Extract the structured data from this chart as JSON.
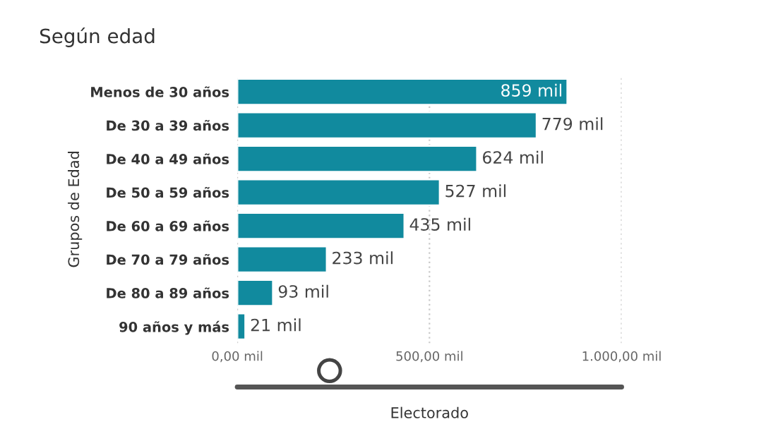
{
  "chart_data": {
    "type": "bar",
    "orientation": "horizontal",
    "title": "Según edad",
    "ylabel": "Grupos de Edad",
    "xlabel": "Electorado",
    "categories": [
      "Menos de 30 años",
      "De 30 a 39 años",
      "De 40 a 49 años",
      "De 50 a 59 años",
      "De 60 a 69 años",
      "De 70 a 79 años",
      "De 80 a 89 años",
      "90 años y más"
    ],
    "values": [
      859,
      779,
      624,
      527,
      435,
      233,
      93,
      21
    ],
    "value_labels": [
      "859 mil",
      "779 mil",
      "624 mil",
      "527 mil",
      "435 mil",
      "233 mil",
      "93 mil",
      "21 mil"
    ],
    "color": "#118a9e",
    "xlim": [
      0,
      1000
    ],
    "xticks": [
      {
        "value": 0,
        "label": "0,00 mil"
      },
      {
        "value": 500,
        "label": "500,00 mil"
      },
      {
        "value": 1000,
        "label": "1.000,00 mil"
      }
    ],
    "grid": "x",
    "legend": false
  }
}
